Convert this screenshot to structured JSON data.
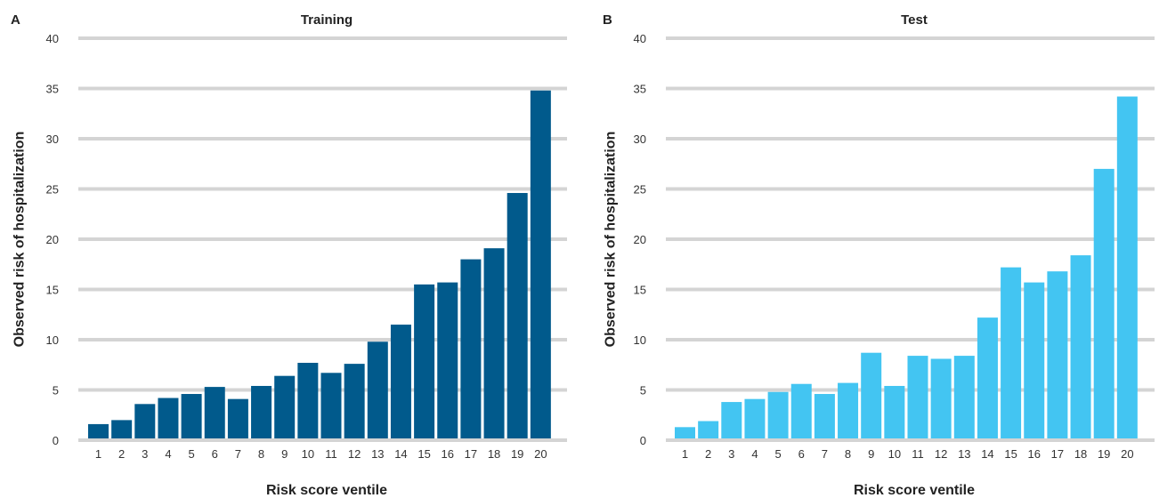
{
  "chart_data": [
    {
      "type": "bar",
      "panel_label": "A",
      "title": "Training",
      "xlabel": "Risk score ventile",
      "ylabel": "Observed risk of hospitalization",
      "categories": [
        "1",
        "2",
        "3",
        "4",
        "5",
        "6",
        "7",
        "8",
        "9",
        "10",
        "11",
        "12",
        "13",
        "14",
        "15",
        "16",
        "17",
        "18",
        "19",
        "20"
      ],
      "values": [
        1.6,
        2.0,
        3.6,
        4.2,
        4.6,
        5.3,
        4.1,
        5.4,
        6.4,
        7.7,
        6.7,
        7.6,
        9.8,
        11.5,
        15.5,
        15.7,
        18.0,
        19.1,
        24.6,
        34.8
      ],
      "ylim": [
        0,
        40
      ],
      "yticks": [
        0,
        5,
        10,
        15,
        20,
        25,
        30,
        35,
        40
      ],
      "grid": "horizontal",
      "bar_color": "#015a8c",
      "grid_color": "#d4d4d4"
    },
    {
      "type": "bar",
      "panel_label": "B",
      "title": "Test",
      "xlabel": "Risk score ventile",
      "ylabel": "Observed risk of hospitalization",
      "categories": [
        "1",
        "2",
        "3",
        "4",
        "5",
        "6",
        "7",
        "8",
        "9",
        "10",
        "11",
        "12",
        "13",
        "14",
        "15",
        "16",
        "17",
        "18",
        "19",
        "20"
      ],
      "values": [
        1.3,
        1.9,
        3.8,
        4.1,
        4.8,
        5.6,
        4.6,
        5.7,
        8.7,
        5.4,
        8.4,
        8.1,
        8.4,
        12.2,
        17.2,
        15.7,
        16.8,
        18.4,
        27.0,
        34.2
      ],
      "ylim": [
        0,
        40
      ],
      "yticks": [
        0,
        5,
        10,
        15,
        20,
        25,
        30,
        35,
        40
      ],
      "grid": "horizontal",
      "bar_color": "#43c5f2",
      "grid_color": "#d4d4d4"
    }
  ]
}
